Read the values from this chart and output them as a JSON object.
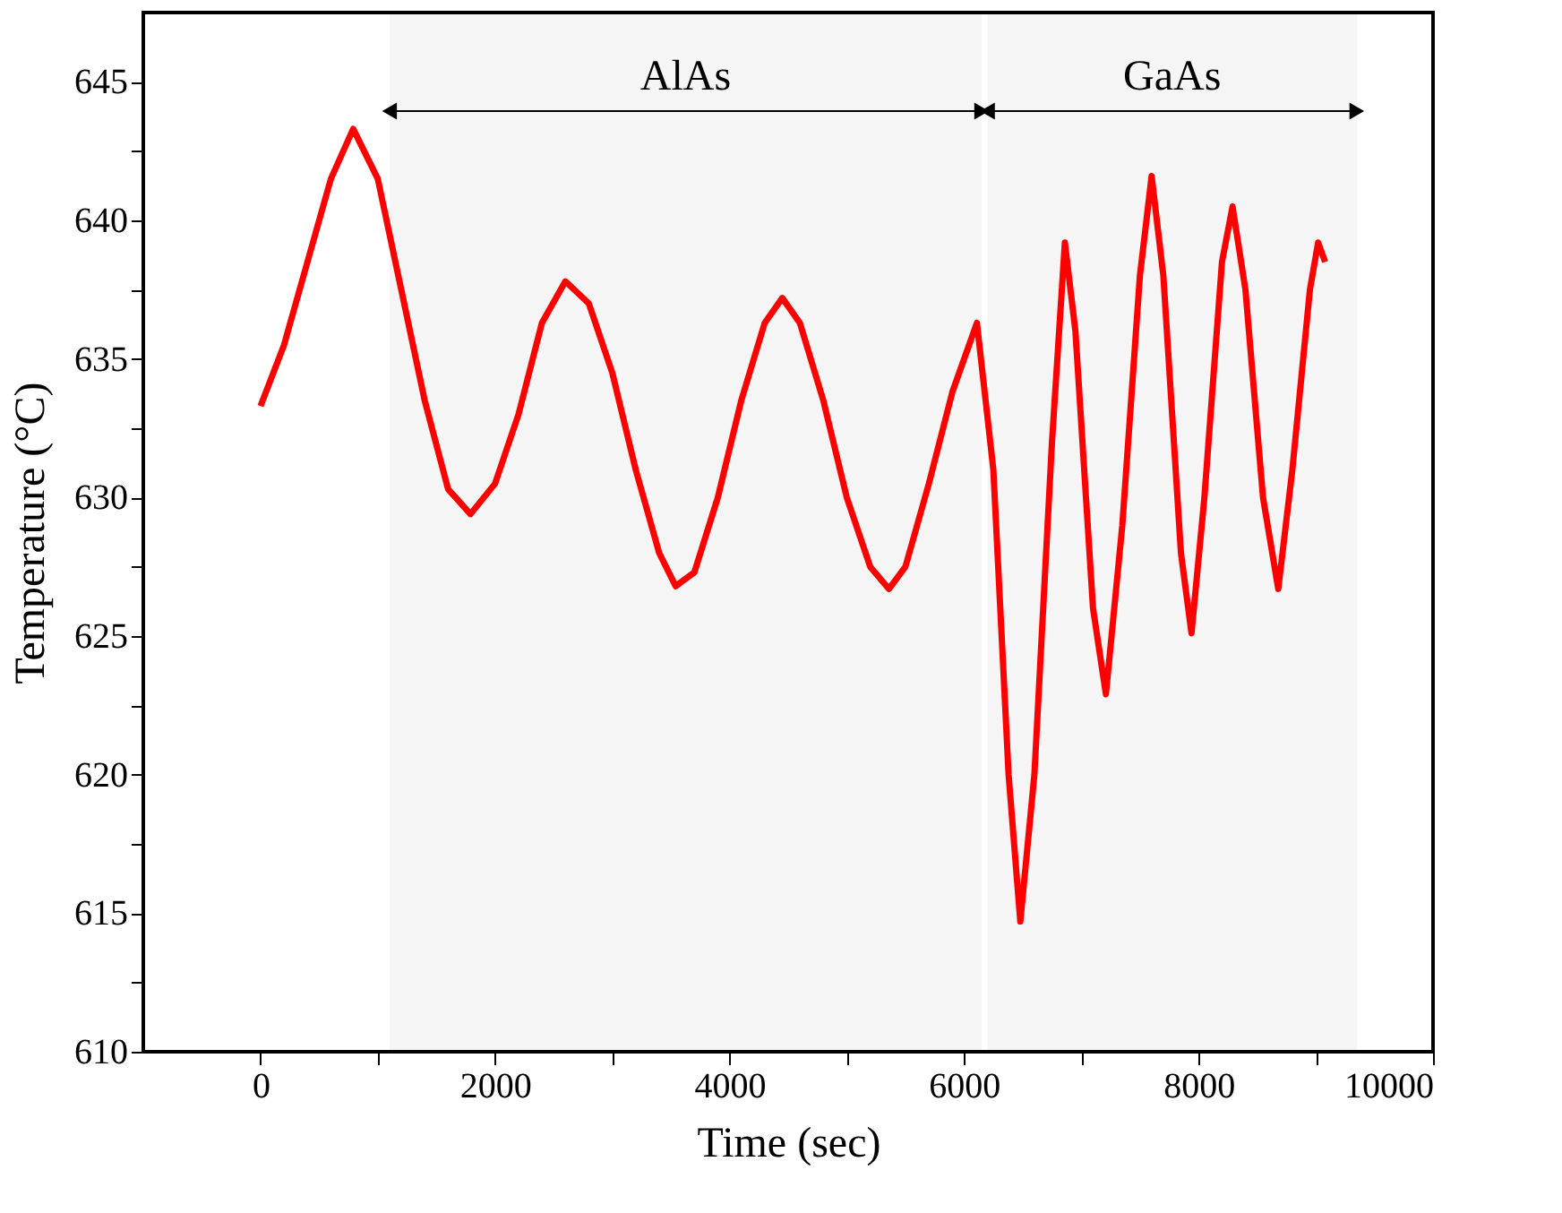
{
  "chart_data": {
    "type": "line",
    "xlabel": "Time (sec)",
    "ylabel": "Temperature (°C)",
    "xlim": [
      -1000,
      10000
    ],
    "xticks": [
      0,
      {
        "value": 1000,
        "label": null
      },
      2000,
      {
        "value": 3000,
        "label": null
      },
      4000,
      {
        "value": 5000,
        "label": null
      },
      6000,
      {
        "value": 7000,
        "label": null
      },
      8000,
      {
        "value": 9000,
        "label": null
      },
      10000
    ],
    "ylim": [
      610,
      647.5
    ],
    "yticks": [
      610,
      {
        "value": 612.5,
        "label": null
      },
      615,
      {
        "value": 617.5,
        "label": null
      },
      620,
      {
        "value": 622.5,
        "label": null
      },
      625,
      {
        "value": 627.5,
        "label": null
      },
      630,
      {
        "value": 632.5,
        "label": null
      },
      635,
      {
        "value": 637.5,
        "label": null
      },
      640,
      {
        "value": 642.5,
        "label": null
      },
      645
    ],
    "bands": [
      {
        "axis": "x",
        "from": 1100,
        "to": 6150,
        "label": "AlAs",
        "color": "#000000"
      },
      {
        "axis": "x",
        "from": 6200,
        "to": 9350,
        "label": "GaAs",
        "color": "#000000"
      }
    ],
    "series": [
      {
        "color": "#ff0000",
        "x": [
          0,
          200,
          400,
          600,
          790,
          1000,
          1200,
          1400,
          1600,
          1790,
          2000,
          2200,
          2400,
          2600,
          2800,
          3000,
          3200,
          3400,
          3540,
          3700,
          3900,
          4100,
          4300,
          4450,
          4600,
          4800,
          5000,
          5200,
          5360,
          5500,
          5700,
          5900,
          6110,
          6250,
          6380,
          6480,
          6600,
          6750,
          6860,
          6950,
          7100,
          7210,
          7350,
          7500,
          7600,
          7700,
          7850,
          7940,
          8050,
          8200,
          8290,
          8400,
          8550,
          8680,
          8800,
          8950,
          9020,
          9080
        ],
        "values": [
          633.3,
          635.5,
          638.5,
          641.5,
          643.3,
          641.5,
          637.5,
          633.5,
          630.3,
          629.4,
          630.5,
          633,
          636.3,
          637.8,
          637,
          634.5,
          631,
          628,
          626.8,
          627.3,
          630,
          633.5,
          636.3,
          637.2,
          636.3,
          633.5,
          630,
          627.5,
          626.7,
          627.5,
          630.5,
          633.8,
          636.3,
          631,
          620,
          614.7,
          620,
          632,
          639.2,
          636,
          626,
          622.9,
          629,
          638,
          641.6,
          638,
          628,
          625.1,
          630,
          638.5,
          640.5,
          637.5,
          630,
          626.7,
          631,
          637.5,
          639.2,
          638.5
        ]
      }
    ]
  }
}
